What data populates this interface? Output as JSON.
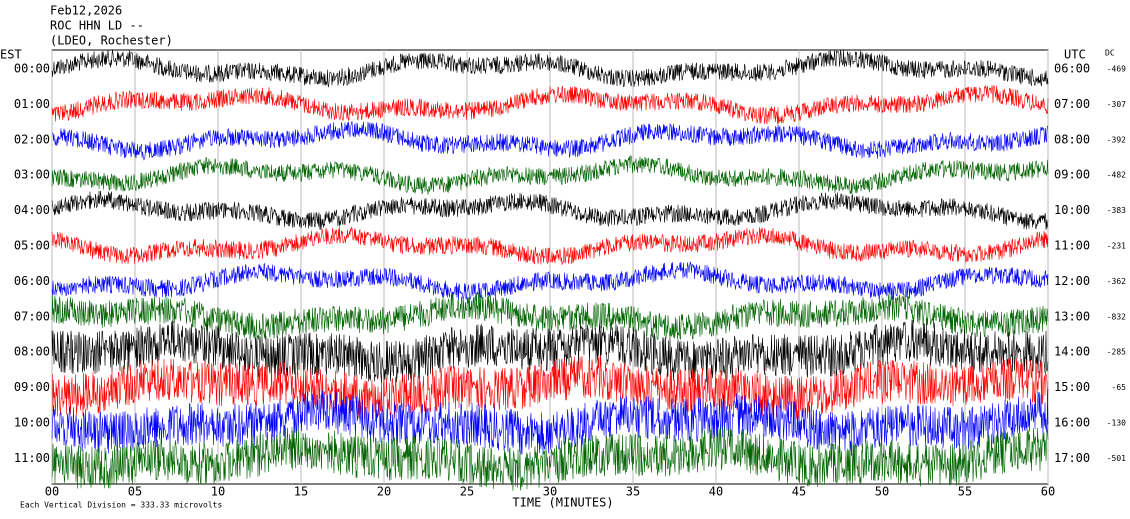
{
  "chart_data": {
    "type": "helicorder",
    "title_lines": [
      "Feb12,2026",
      "ROC HHN LD --",
      "(LDEO, Rochester)"
    ],
    "left_axis_label": "EST",
    "right_axis_label": "UTC",
    "offset_label": "DC",
    "rows": [
      {
        "est": "00:00",
        "utc": "06:00",
        "dc": -469,
        "color": "#000000"
      },
      {
        "est": "01:00",
        "utc": "07:00",
        "dc": -307,
        "color": "#ff0000"
      },
      {
        "est": "02:00",
        "utc": "08:00",
        "dc": -392,
        "color": "#0000ff"
      },
      {
        "est": "03:00",
        "utc": "09:00",
        "dc": -482,
        "color": "#006400"
      },
      {
        "est": "04:00",
        "utc": "10:00",
        "dc": -383,
        "color": "#000000"
      },
      {
        "est": "05:00",
        "utc": "11:00",
        "dc": -231,
        "color": "#ff0000"
      },
      {
        "est": "06:00",
        "utc": "12:00",
        "dc": -362,
        "color": "#0000ff"
      },
      {
        "est": "07:00",
        "utc": "13:00",
        "dc": -832,
        "color": "#006400"
      },
      {
        "est": "08:00",
        "utc": "14:00",
        "dc": -285,
        "color": "#000000"
      },
      {
        "est": "09:00",
        "utc": "15:00",
        "dc": -65,
        "color": "#ff0000"
      },
      {
        "est": "10:00",
        "utc": "16:00",
        "dc": -130,
        "color": "#0000ff"
      },
      {
        "est": "11:00",
        "utc": "17:00",
        "dc": -501,
        "color": "#006400"
      }
    ],
    "xlim": [
      0,
      60
    ],
    "xticks": [
      {
        "value": 0,
        "label": "00"
      },
      {
        "value": 5,
        "label": "05"
      },
      10,
      15,
      20,
      25,
      30,
      35,
      40,
      45,
      50,
      55,
      60
    ],
    "xlabel": "TIME (MINUTES)",
    "scale_note": "Each Vertical Division =  333.33 microvolts",
    "grid": true
  }
}
